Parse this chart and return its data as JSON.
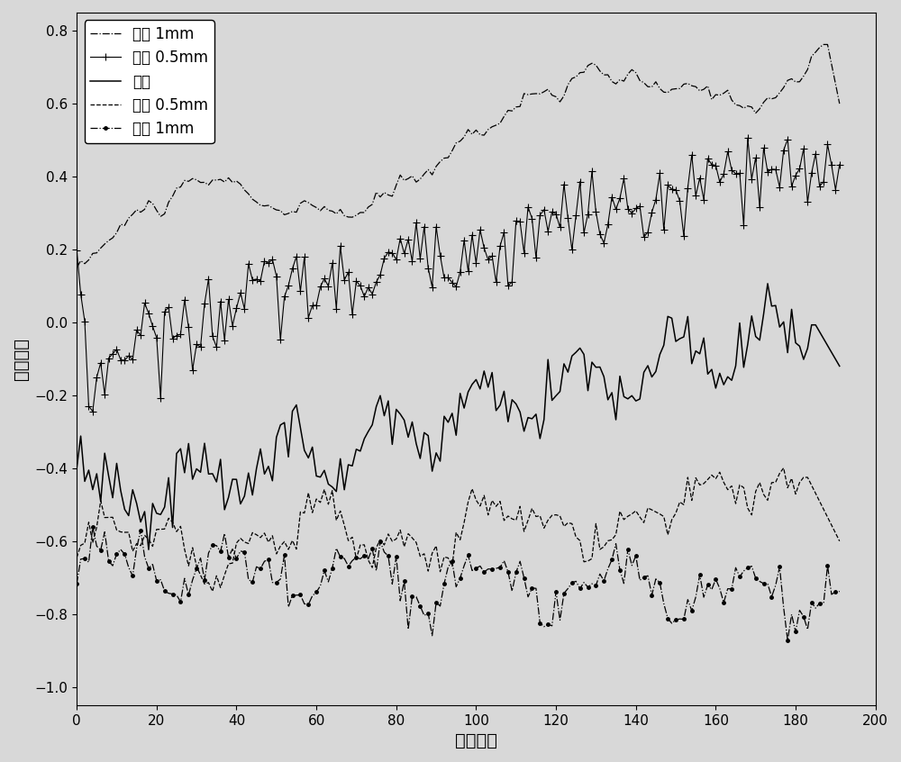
{
  "title": "",
  "xlabel": "周期序列",
  "ylabel": "相关系数",
  "xlim": [
    0,
    200
  ],
  "ylim": [
    -1.05,
    0.85
  ],
  "yticks": [
    -1,
    -0.8,
    -0.6,
    -0.4,
    -0.2,
    0,
    0.2,
    0.4,
    0.6,
    0.8
  ],
  "xticks": [
    0,
    20,
    40,
    60,
    80,
    100,
    120,
    140,
    160,
    180,
    200
  ],
  "legend_labels": [
    "右偏 1mm",
    "右偏 0.5mm",
    "对中",
    "左偏 0.5mm",
    "左偏 1mm"
  ],
  "n_points": 192,
  "background": "#d8d8d8"
}
